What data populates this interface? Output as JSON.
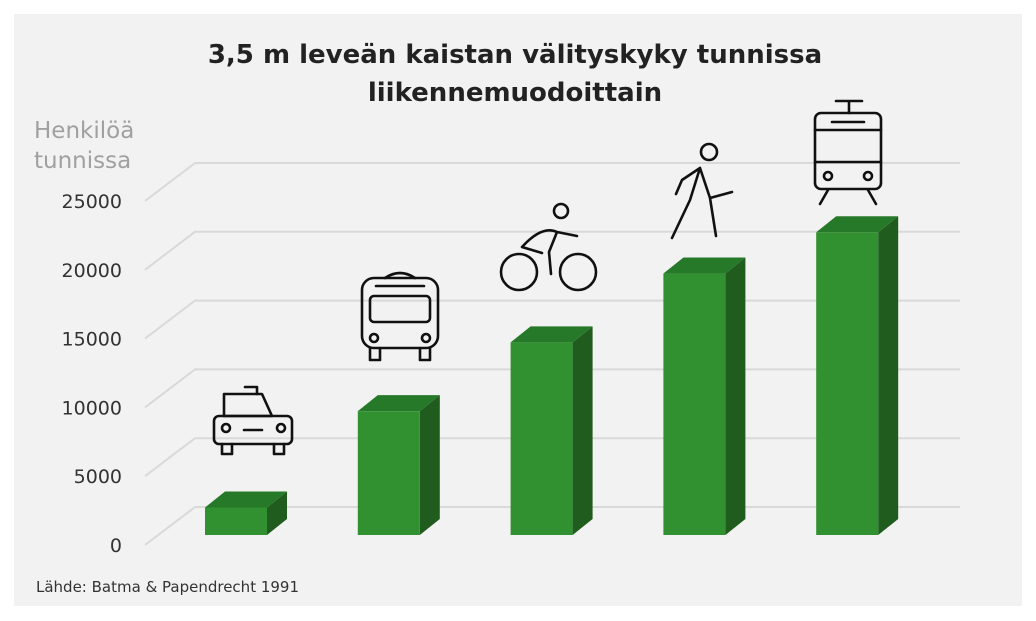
{
  "chart_data": {
    "type": "bar",
    "title_lines": [
      "3,5 m leveän kaistan välityskyky tunnissa",
      "liikennemuodoittain"
    ],
    "ylabel_lines": [
      "Henkilöä",
      "tunnissa"
    ],
    "xlabel": "",
    "ylim": [
      0,
      25000
    ],
    "yticks": [
      "0",
      "5000",
      "10000",
      "15000",
      "20000",
      "25000"
    ],
    "grid": true,
    "style": "3d",
    "categories": [
      "car-icon",
      "bus-icon",
      "bicycle-icon",
      "pedestrian-icon",
      "tram-icon"
    ],
    "values": [
      2000,
      9000,
      14000,
      19000,
      22000
    ],
    "colors": {
      "front": "#31902f",
      "side": "#1f5c1d",
      "top": "#27792a",
      "grid": "#d9d9d9"
    },
    "source": "Lähde: Batma & Papendrecht 1991"
  }
}
